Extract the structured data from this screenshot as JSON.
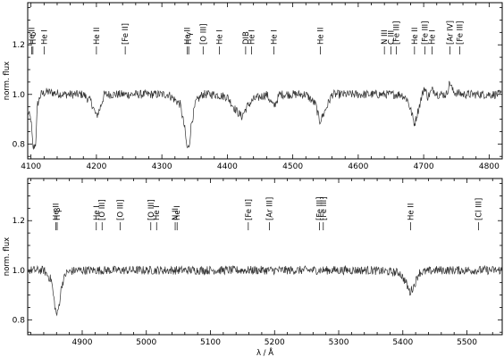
{
  "chart_data": [
    {
      "type": "line",
      "title": "",
      "xlabel": "",
      "ylabel": "norm. flux",
      "xlim": [
        4095,
        4820
      ],
      "ylim": [
        0.74,
        1.37
      ],
      "grid": false,
      "xticks": [
        "4100",
        "4200",
        "4300",
        "4400",
        "4500",
        "4600",
        "4700",
        "4800"
      ],
      "xtick_values": [
        4100,
        4200,
        4300,
        4400,
        4500,
        4600,
        4700,
        4800
      ],
      "yticks": [
        "0.8",
        "1.0",
        "1.2"
      ],
      "ytick_values": [
        0.8,
        1.0,
        1.2
      ],
      "series": [
        {
          "x": [
            4095,
            4100,
            4103,
            4107,
            4110,
            4115,
            4125,
            4150,
            4180,
            4192,
            4200,
            4205,
            4212,
            4222,
            4250,
            4280,
            4310,
            4328,
            4335,
            4338,
            4340,
            4342,
            4345,
            4352,
            4362,
            4380,
            4400,
            4412,
            4422,
            4430,
            4440,
            4460,
            4471,
            4480,
            4520,
            4535,
            4541,
            4547,
            4560,
            4600,
            4640,
            4650,
            4658,
            4666,
            4675,
            4681,
            4686,
            4690,
            4695,
            4701,
            4706,
            4714,
            4722,
            4735,
            4740,
            4745,
            4760,
            4800,
            4820
          ],
          "y": [
            0.93,
            0.9,
            0.78,
            0.8,
            0.96,
            1.0,
            1.01,
            1.0,
            1.0,
            0.97,
            0.91,
            0.94,
            1.0,
            1.0,
            1.0,
            1.0,
            1.0,
            0.96,
            0.86,
            0.79,
            0.78,
            0.8,
            0.88,
            0.97,
            1.0,
            1.0,
            0.99,
            0.94,
            0.91,
            0.95,
            0.98,
            1.0,
            0.95,
            1.0,
            1.0,
            0.96,
            0.89,
            0.92,
            1.0,
            1.0,
            1.0,
            1.0,
            1.0,
            1.0,
            0.98,
            0.93,
            0.88,
            0.92,
            0.97,
            1.03,
            0.99,
            1.02,
            1.0,
            1.0,
            1.05,
            1.01,
            1.0,
            1.0,
            1.0
          ]
        }
      ],
      "lines": [
        {
          "x": 4101,
          "label": "He II"
        },
        {
          "x": 4103,
          "label": "H δ"
        },
        {
          "x": 4120,
          "label": "He I"
        },
        {
          "x": 4200,
          "label": "He II"
        },
        {
          "x": 4244,
          "label": "[Fe II]"
        },
        {
          "x": 4339,
          "label": "He II"
        },
        {
          "x": 4341,
          "label": "H γ"
        },
        {
          "x": 4363,
          "label": "[O III]"
        },
        {
          "x": 4388,
          "label": "He I"
        },
        {
          "x": 4428,
          "label": "DIB"
        },
        {
          "x": 4437,
          "label": "He I"
        },
        {
          "x": 4471,
          "label": "He I"
        },
        {
          "x": 4542,
          "label": "He II"
        },
        {
          "x": 4640,
          "label": "N III"
        },
        {
          "x": 4650,
          "label": "C III"
        },
        {
          "x": 4658,
          "label": "[Fe III]"
        },
        {
          "x": 4686,
          "label": "He II"
        },
        {
          "x": 4702,
          "label": "[Fe III]"
        },
        {
          "x": 4713,
          "label": "He I"
        },
        {
          "x": 4740,
          "label": "[Ar IV]"
        },
        {
          "x": 4755,
          "label": "[Fe III]"
        }
      ]
    },
    {
      "type": "line",
      "title": "",
      "xlabel": "λ / Å",
      "ylabel": "norm. flux",
      "xlim": [
        4815,
        5555
      ],
      "ylim": [
        0.74,
        1.37
      ],
      "grid": false,
      "xticks": [
        "4900",
        "5000",
        "5100",
        "5200",
        "5300",
        "5400",
        "5500"
      ],
      "xtick_values": [
        4900,
        5000,
        5100,
        5200,
        5300,
        5400,
        5500
      ],
      "yticks": [
        "0.8",
        "1.0",
        "1.2"
      ],
      "ytick_values": [
        0.8,
        1.0,
        1.2
      ],
      "series": [
        {
          "x": [
            4815,
            4840,
            4852,
            4856,
            4859,
            4861,
            4864,
            4868,
            4875,
            4890,
            4922,
            4925,
            4930,
            4958,
            4960,
            4963,
            5005,
            5007,
            5010,
            5015,
            5020,
            5050,
            5100,
            5150,
            5200,
            5260,
            5270,
            5272,
            5280,
            5350,
            5395,
            5405,
            5411,
            5418,
            5425,
            5450,
            5500,
            5555
          ],
          "y": [
            1.0,
            1.0,
            0.96,
            0.88,
            0.83,
            0.82,
            0.86,
            0.94,
            0.99,
            1.0,
            1.0,
            1.0,
            1.0,
            1.0,
            1.0,
            1.0,
            1.0,
            1.0,
            1.0,
            1.0,
            1.0,
            1.0,
            1.0,
            1.0,
            1.0,
            1.0,
            1.0,
            1.0,
            1.0,
            1.0,
            0.99,
            0.95,
            0.91,
            0.94,
            0.99,
            1.0,
            1.0,
            1.0
          ]
        }
      ],
      "lines": [
        {
          "x": 4859,
          "label": "He II"
        },
        {
          "x": 4861,
          "label": "H β"
        },
        {
          "x": 4922,
          "label": "He I"
        },
        {
          "x": 4931,
          "label": "[O III]"
        },
        {
          "x": 4959,
          "label": "[O III]"
        },
        {
          "x": 5007,
          "label": "[O III]"
        },
        {
          "x": 5016,
          "label": "He I"
        },
        {
          "x": 5045,
          "label": "N II"
        },
        {
          "x": 5048,
          "label": "He I"
        },
        {
          "x": 5159,
          "label": "[Fe II]"
        },
        {
          "x": 5192,
          "label": "[Ar III]"
        },
        {
          "x": 5270,
          "label": "[Fe III]"
        },
        {
          "x": 5276,
          "label": "[Fe III]"
        },
        {
          "x": 5412,
          "label": "He II"
        },
        {
          "x": 5518,
          "label": "[Cl III]"
        }
      ]
    }
  ]
}
